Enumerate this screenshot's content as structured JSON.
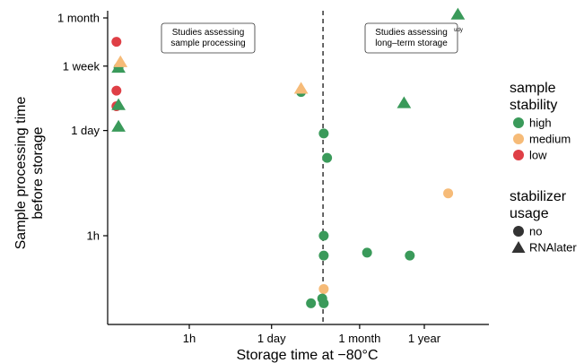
{
  "chart_data": {
    "type": "scatter",
    "title": "",
    "xlabel": "Storage time at −80°C",
    "ylabel": "Sample processing time before storage",
    "ylabel_lines": [
      "Sample processing time",
      "before storage"
    ],
    "x_scale": "log",
    "y_scale": "log",
    "x_unit": "hours",
    "y_unit": "hours",
    "xlim": [
      0.03,
      40000
    ],
    "ylim": [
      0.1,
      900
    ],
    "x_ticks": [
      {
        "value": 1,
        "label": "1h"
      },
      {
        "value": 24,
        "label": "1 day"
      },
      {
        "value": 720,
        "label": "1 month"
      },
      {
        "value": 8760,
        "label": "1 year"
      }
    ],
    "y_ticks": [
      {
        "value": 1,
        "label": "1h"
      },
      {
        "value": 24,
        "label": "1 day"
      },
      {
        "value": 168,
        "label": "1 week"
      },
      {
        "value": 720,
        "label": "1 month"
      }
    ],
    "vline": {
      "x": 175,
      "style": "dashed"
    },
    "annotations": [
      {
        "text_lines": [
          "Studies assessing",
          "sample processing"
        ],
        "boxed": true
      },
      {
        "text_lines": [
          "Studies assessing",
          "long–term storage"
        ],
        "boxed": true
      },
      {
        "text_lines": [
          "udy"
        ],
        "boxed": false
      }
    ],
    "legend": {
      "placement": "right",
      "color_title_lines": [
        "sample",
        "stability"
      ],
      "shape_title_lines": [
        "stabilizer",
        "usage"
      ],
      "colors": [
        {
          "label": "high",
          "color": "#3a9a5a"
        },
        {
          "label": "medium",
          "color": "#f6bb78"
        },
        {
          "label": "low",
          "color": "#df3f46"
        }
      ],
      "shapes": [
        {
          "label": "no",
          "shape": "circle"
        },
        {
          "label": "RNAlater",
          "shape": "triangle"
        }
      ]
    },
    "points": [
      {
        "x": 0.06,
        "y": 350,
        "stability": "low",
        "shape": "circle"
      },
      {
        "x": 0.06,
        "y": 80,
        "stability": "low",
        "shape": "circle"
      },
      {
        "x": 0.06,
        "y": 50,
        "stability": "low",
        "shape": "circle"
      },
      {
        "x": 0.065,
        "y": 160,
        "stability": "high",
        "shape": "circle"
      },
      {
        "x": 0.065,
        "y": 160,
        "stability": "high",
        "shape": "triangle"
      },
      {
        "x": 0.07,
        "y": 190,
        "stability": "medium",
        "shape": "triangle"
      },
      {
        "x": 0.065,
        "y": 52,
        "stability": "high",
        "shape": "triangle"
      },
      {
        "x": 0.065,
        "y": 27,
        "stability": "high",
        "shape": "triangle"
      },
      {
        "x": 75,
        "y": 77,
        "stability": "high",
        "shape": "circle"
      },
      {
        "x": 75,
        "y": 85,
        "stability": "medium",
        "shape": "triangle"
      },
      {
        "x": 180,
        "y": 22,
        "stability": "high",
        "shape": "circle"
      },
      {
        "x": 205,
        "y": 10.5,
        "stability": "high",
        "shape": "circle"
      },
      {
        "x": 180,
        "y": 1.0,
        "stability": "high",
        "shape": "circle"
      },
      {
        "x": 180,
        "y": 0.55,
        "stability": "high",
        "shape": "circle"
      },
      {
        "x": 180,
        "y": 0.2,
        "stability": "medium",
        "shape": "circle"
      },
      {
        "x": 170,
        "y": 0.15,
        "stability": "high",
        "shape": "circle"
      },
      {
        "x": 180,
        "y": 0.13,
        "stability": "high",
        "shape": "circle"
      },
      {
        "x": 110,
        "y": 0.13,
        "stability": "high",
        "shape": "circle"
      },
      {
        "x": 960,
        "y": 0.6,
        "stability": "high",
        "shape": "circle"
      },
      {
        "x": 4000,
        "y": 55,
        "stability": "high",
        "shape": "triangle"
      },
      {
        "x": 5000,
        "y": 0.55,
        "stability": "high",
        "shape": "circle"
      },
      {
        "x": 22000,
        "y": 3.6,
        "stability": "medium",
        "shape": "circle"
      },
      {
        "x": 32000,
        "y": 800,
        "stability": "high",
        "shape": "triangle"
      }
    ]
  }
}
